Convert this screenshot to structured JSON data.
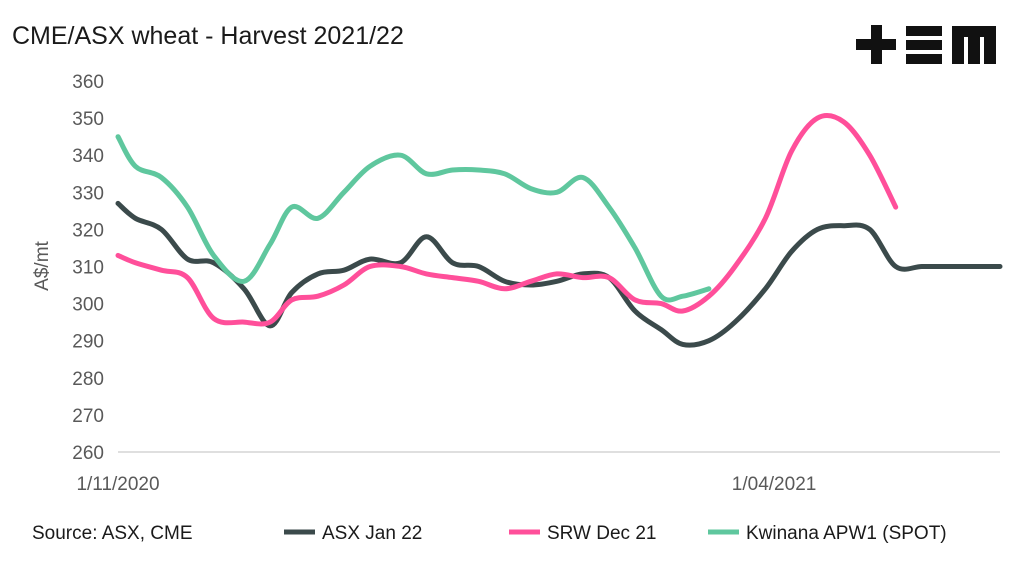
{
  "colors": {
    "asx": "#3b4a4b",
    "srw": "#ff4f9a",
    "kwinana": "#5fc79e",
    "logo": "#111111",
    "axis": "#bfbfbf"
  },
  "logo": {
    "text": "+EM",
    "icon": "tem-logo"
  },
  "source": "Source: ASX, CME",
  "chart_data": {
    "type": "line",
    "title": "CME/ASX wheat - Harvest 2021/22",
    "ylabel": "A$/mt",
    "xlabel": "",
    "ylim": [
      260,
      360
    ],
    "yticks": [
      260,
      270,
      280,
      290,
      300,
      310,
      320,
      330,
      340,
      350,
      360
    ],
    "x_tick_labels": [
      "1/11/2020",
      "1/04/2021"
    ],
    "x_tick_dates": [
      "2020-11-01",
      "2021-04-01"
    ],
    "grid": false,
    "legend": "bottom",
    "series": [
      {
        "name": "ASX Jan 22",
        "color_key": "asx",
        "x": [
          "2020-11-01",
          "2020-11-05",
          "2020-11-11",
          "2020-11-17",
          "2020-11-23",
          "2020-11-30",
          "2020-12-06",
          "2020-12-11",
          "2020-12-17",
          "2020-12-23",
          "2020-12-29",
          "2021-01-05",
          "2021-01-11",
          "2021-01-17",
          "2021-01-23",
          "2021-01-29",
          "2021-02-04",
          "2021-02-10",
          "2021-02-16",
          "2021-02-22",
          "2021-02-28",
          "2021-03-06",
          "2021-03-11",
          "2021-03-17",
          "2021-03-23",
          "2021-03-30",
          "2021-04-05",
          "2021-04-11",
          "2021-04-17",
          "2021-04-23",
          "2021-04-29",
          "2021-05-05",
          "2021-05-11",
          "2021-05-17",
          "2021-05-23"
        ],
        "y": [
          327,
          323,
          320,
          312,
          311,
          304,
          294,
          303,
          308,
          309,
          312,
          311,
          318,
          311,
          310,
          306,
          305,
          306,
          308,
          307,
          298,
          293,
          289,
          290,
          295,
          304,
          314,
          320,
          321,
          320,
          310,
          310,
          310,
          310,
          310
        ]
      },
      {
        "name": "SRW Dec 21",
        "color_key": "srw",
        "x": [
          "2020-11-01",
          "2020-11-05",
          "2020-11-11",
          "2020-11-17",
          "2020-11-23",
          "2020-11-30",
          "2020-12-06",
          "2020-12-11",
          "2020-12-17",
          "2020-12-23",
          "2020-12-29",
          "2021-01-05",
          "2021-01-11",
          "2021-01-17",
          "2021-01-23",
          "2021-01-29",
          "2021-02-04",
          "2021-02-10",
          "2021-02-16",
          "2021-02-22",
          "2021-02-28",
          "2021-03-06",
          "2021-03-11",
          "2021-03-17",
          "2021-03-23",
          "2021-03-30",
          "2021-04-05",
          "2021-04-11",
          "2021-04-17",
          "2021-04-23",
          "2021-04-29"
        ],
        "y": [
          313,
          311,
          309,
          307,
          296,
          295,
          295,
          301,
          302,
          305,
          310,
          310,
          308,
          307,
          306,
          304,
          306,
          308,
          307,
          307,
          301,
          300,
          298,
          302,
          310,
          323,
          341,
          350,
          349,
          340,
          326
        ]
      },
      {
        "name": "Kwinana APW1 (SPOT)",
        "color_key": "kwinana",
        "x": [
          "2020-11-01",
          "2020-11-05",
          "2020-11-11",
          "2020-11-17",
          "2020-11-23",
          "2020-11-30",
          "2020-12-06",
          "2020-12-11",
          "2020-12-17",
          "2020-12-23",
          "2020-12-29",
          "2021-01-05",
          "2021-01-11",
          "2021-01-17",
          "2021-01-23",
          "2021-01-29",
          "2021-02-04",
          "2021-02-10",
          "2021-02-16",
          "2021-02-22",
          "2021-02-28",
          "2021-03-06",
          "2021-03-11",
          "2021-03-17"
        ],
        "y": [
          345,
          337,
          334,
          326,
          313,
          306,
          316,
          326,
          323,
          330,
          337,
          340,
          335,
          336,
          336,
          335,
          331,
          330,
          334,
          326,
          315,
          302,
          302,
          304
        ]
      }
    ]
  }
}
